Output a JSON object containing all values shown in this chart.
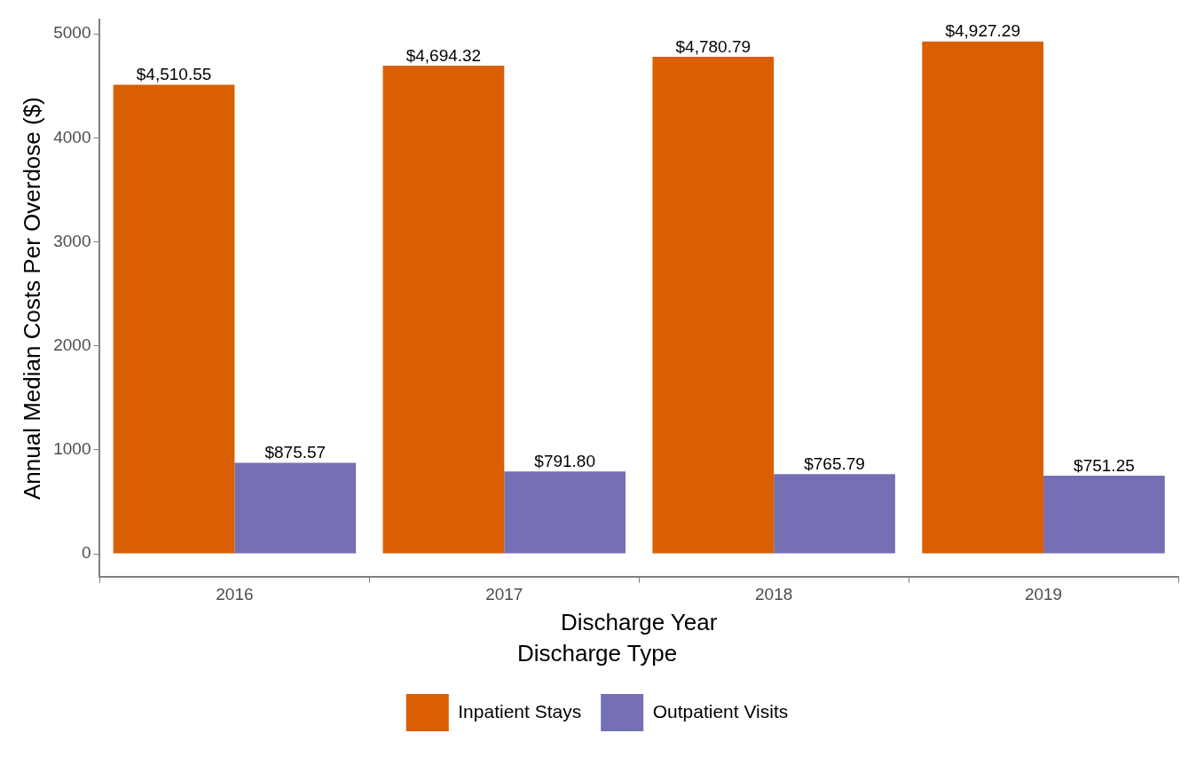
{
  "chart_data": {
    "type": "bar",
    "xlabel": "Discharge Year",
    "ylabel": "Annual Median Costs Per Overdose ($)",
    "legend_title": "Discharge Type",
    "categories": [
      "2016",
      "2017",
      "2018",
      "2019"
    ],
    "series": [
      {
        "name": "Inpatient Stays",
        "color": "#d95f02",
        "values": [
          4510.55,
          4694.32,
          4780.79,
          4927.29
        ],
        "value_labels": [
          "$4,510.55",
          "$4,694.32",
          "$4,780.79",
          "$4,927.29"
        ]
      },
      {
        "name": "Outpatient Visits",
        "color": "#7570b3",
        "values": [
          875.57,
          791.8,
          765.79,
          751.25
        ],
        "value_labels": [
          "$875.57",
          "$791.80",
          "$765.79",
          "$751.25"
        ]
      }
    ],
    "ylim": [
      -220,
      5135
    ],
    "yticks": [
      0,
      1000,
      2000,
      3000,
      4000,
      5000
    ],
    "grid": false,
    "legend": "bottom"
  }
}
